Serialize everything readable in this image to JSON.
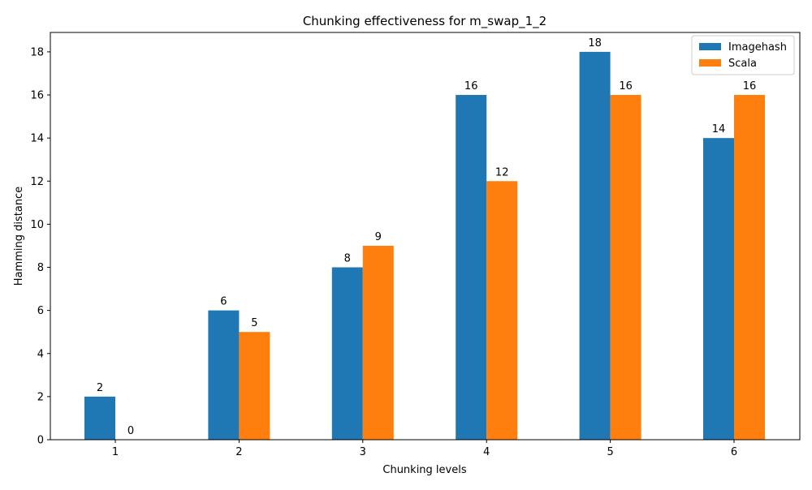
{
  "chart_data": {
    "type": "bar",
    "title": "Chunking effectiveness for  m_swap_1_2",
    "xlabel": "Chunking levels",
    "ylabel": "Hamming distance",
    "categories": [
      "1",
      "2",
      "3",
      "4",
      "5",
      "6"
    ],
    "series": [
      {
        "name": "Imagehash",
        "color": "#1f77b4",
        "values": [
          2,
          6,
          8,
          16,
          18,
          14
        ]
      },
      {
        "name": "Scala",
        "color": "#ff7f0e",
        "values": [
          0,
          5,
          9,
          12,
          16,
          16
        ]
      }
    ],
    "ylim": [
      0,
      18.9
    ],
    "yticks": [
      "0",
      "2",
      "4",
      "6",
      "8",
      "10",
      "12",
      "14",
      "16",
      "18"
    ],
    "grid": false,
    "legend_position": "top-right",
    "data_labels": true
  }
}
